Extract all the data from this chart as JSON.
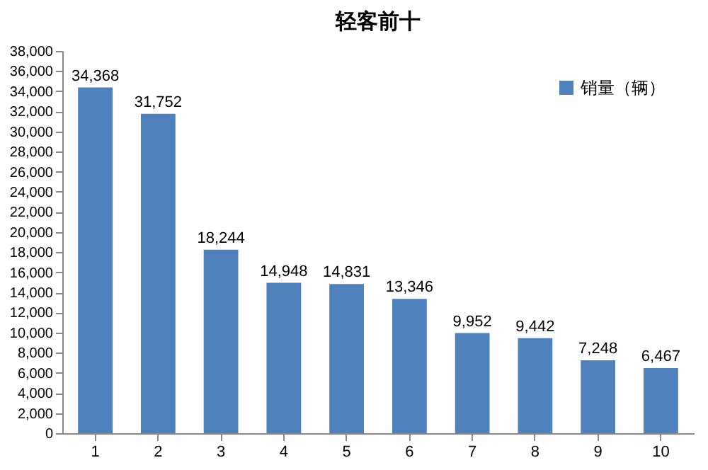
{
  "chart_data": {
    "type": "bar",
    "title": "轻客前十",
    "categories": [
      "1",
      "2",
      "3",
      "4",
      "5",
      "6",
      "7",
      "8",
      "9",
      "10"
    ],
    "series": [
      {
        "name": "销量（辆）",
        "color": "#4f81bd",
        "values": [
          34368,
          31752,
          18244,
          14948,
          14831,
          13346,
          9952,
          9442,
          7248,
          6467
        ],
        "value_labels": [
          "34,368",
          "31,752",
          "18,244",
          "14,948",
          "14,831",
          "13,346",
          "9,952",
          "9,442",
          "7,248",
          "6,467"
        ]
      }
    ],
    "ylim": [
      0,
      38000
    ],
    "yticks": [
      {
        "value": 0,
        "label": "0"
      },
      {
        "value": 2000,
        "label": "2,000"
      },
      {
        "value": 4000,
        "label": "4,000"
      },
      {
        "value": 6000,
        "label": "6,000"
      },
      {
        "value": 8000,
        "label": "8,000"
      },
      {
        "value": 10000,
        "label": "10,000"
      },
      {
        "value": 12000,
        "label": "12,000"
      },
      {
        "value": 14000,
        "label": "14,000"
      },
      {
        "value": 16000,
        "label": "16,000"
      },
      {
        "value": 18000,
        "label": "18,000"
      },
      {
        "value": 20000,
        "label": "20,000"
      },
      {
        "value": 22000,
        "label": "22,000"
      },
      {
        "value": 24000,
        "label": "24,000"
      },
      {
        "value": 26000,
        "label": "26,000"
      },
      {
        "value": 28000,
        "label": "28,000"
      },
      {
        "value": 30000,
        "label": "30,000"
      },
      {
        "value": 32000,
        "label": "32,000"
      },
      {
        "value": 34000,
        "label": "34,000"
      },
      {
        "value": 36000,
        "label": "36,000"
      },
      {
        "value": 38000,
        "label": "38,000"
      }
    ],
    "grid": false,
    "legend": "top right"
  }
}
